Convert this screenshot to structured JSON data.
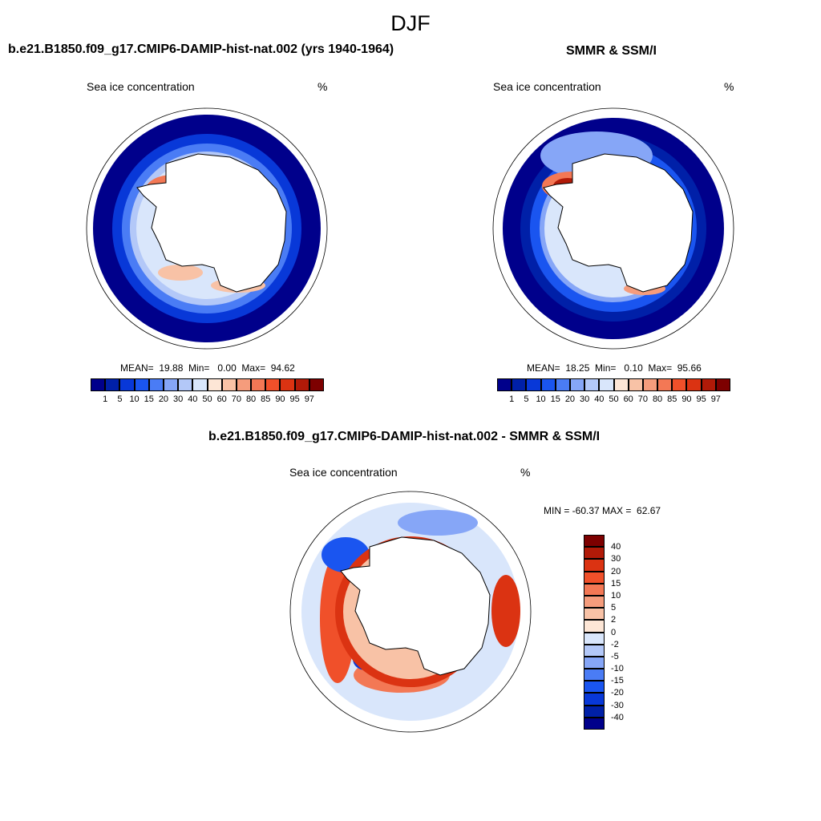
{
  "main_title": "DJF",
  "panels": [
    {
      "title": "b.e21.B1850.f09_g17.CMIP6-DAMIP-hist-nat.002 (yrs 1940-1964)",
      "variable": "Sea ice concentration",
      "units": "%",
      "stats": "MEAN=  19.88  Min=   0.00  Max=  94.62"
    },
    {
      "title": "SMMR & SSM/I",
      "variable": "Sea ice concentration",
      "units": "%",
      "stats": "MEAN=  18.25  Min=   0.10  Max=  95.66"
    },
    {
      "title": "b.e21.B1850.f09_g17.CMIP6-DAMIP-hist-nat.002 - SMMR & SSM/I",
      "variable": "Sea ice concentration",
      "units": "%",
      "stats": "MIN = -60.37 MAX =  62.67"
    }
  ],
  "colorbar_concentration": {
    "labels": [
      "1",
      "5",
      "10",
      "15",
      "20",
      "30",
      "40",
      "50",
      "60",
      "70",
      "80",
      "85",
      "90",
      "95",
      "97"
    ],
    "colors": [
      "#00008b",
      "#0020a8",
      "#0838d8",
      "#1a55f0",
      "#4a7cf5",
      "#86a6f7",
      "#b3c8f8",
      "#d9e6fb",
      "#fde6d6",
      "#f8c2a6",
      "#f59c7c",
      "#f37855",
      "#f0502a",
      "#db3312",
      "#b11a08",
      "#7d0000"
    ]
  },
  "colorbar_difference": {
    "labels": [
      "40",
      "30",
      "20",
      "15",
      "10",
      "5",
      "2",
      "0",
      "-2",
      "-5",
      "-10",
      "-15",
      "-20",
      "-30",
      "-40"
    ],
    "colors": [
      "#7d0000",
      "#b11a08",
      "#db3312",
      "#f0502a",
      "#f37855",
      "#f59c7c",
      "#f8c2a6",
      "#fde6d6",
      "#d9e6fb",
      "#b3c8f8",
      "#86a6f7",
      "#4a7cf5",
      "#1a55f0",
      "#0838d8",
      "#0020a8",
      "#00008b"
    ]
  }
}
